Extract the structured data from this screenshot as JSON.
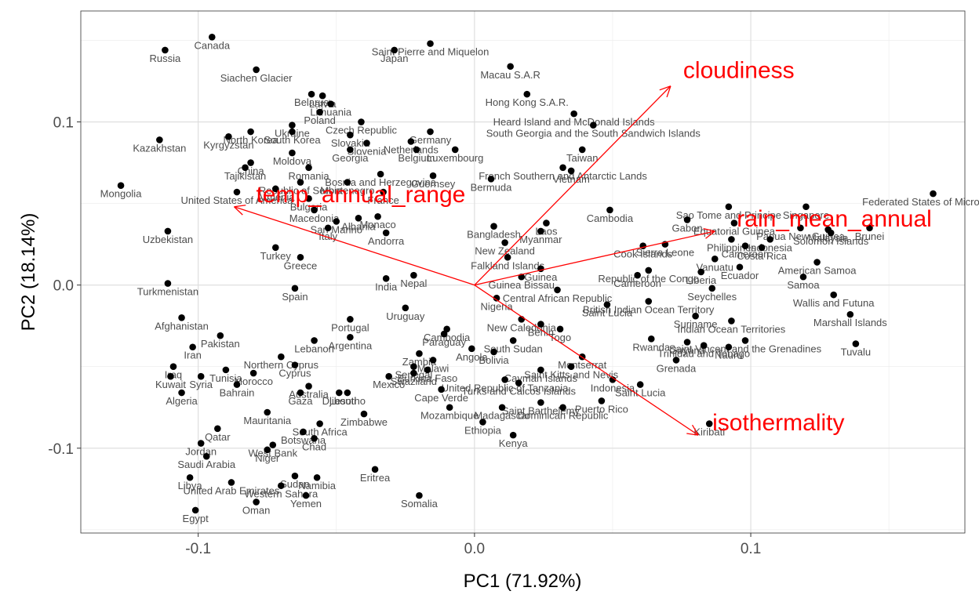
{
  "chart_data": {
    "type": "scatter",
    "title": "",
    "xlabel": "PC1 (71.92%)",
    "ylabel": "PC2 (18.14%)",
    "xlim": [
      -0.1425,
      0.1775
    ],
    "ylim": [
      -0.152,
      0.168
    ],
    "x_ticks": [
      -0.1,
      0.0,
      0.1
    ],
    "x_tick_labels": [
      "-0.1",
      "0.0",
      "0.1"
    ],
    "y_ticks": [
      -0.1,
      0.0,
      0.1
    ],
    "y_tick_labels": [
      "-0.1",
      "0.0",
      "0.1"
    ],
    "grid": true,
    "colors": {
      "points": "#000000",
      "labels": "#4d4d4d",
      "loadings": "#ff0000",
      "grid": "#ebebeb",
      "axis_text": "#4d4d4d",
      "axis_title": "#000000"
    },
    "arrow_origin": [
      0,
      0
    ],
    "loadings": [
      {
        "name": "cloudiness",
        "x": 0.071,
        "y": 0.122
      },
      {
        "name": "temp_annual_range",
        "x": -0.087,
        "y": 0.048
      },
      {
        "name": "rain_mean_annual",
        "x": 0.087,
        "y": 0.033
      },
      {
        "name": "isothermality",
        "x": 0.081,
        "y": -0.092
      }
    ],
    "points": [
      {
        "label": "Canada",
        "x": -0.095,
        "y": 0.152
      },
      {
        "label": "Russia",
        "x": -0.112,
        "y": 0.144
      },
      {
        "label": "Saint Pierre and Miquelon",
        "x": -0.016,
        "y": 0.148
      },
      {
        "label": "Japan",
        "x": -0.029,
        "y": 0.144
      },
      {
        "label": "Siachen Glacier",
        "x": -0.079,
        "y": 0.132
      },
      {
        "label": "Macau S.A.R",
        "x": 0.013,
        "y": 0.134
      },
      {
        "label": "Hong Kong S.A.R.",
        "x": 0.019,
        "y": 0.117
      },
      {
        "label": "Heard Island and McDonald Islands",
        "x": 0.036,
        "y": 0.105
      },
      {
        "label": "South Georgia and the South Sandwich Islands",
        "x": 0.043,
        "y": 0.098
      },
      {
        "label": "Belarus",
        "x": -0.059,
        "y": 0.117
      },
      {
        "label": "Latvia",
        "x": -0.055,
        "y": 0.116
      },
      {
        "label": "Lithuania",
        "x": -0.052,
        "y": 0.111
      },
      {
        "label": "Poland",
        "x": -0.056,
        "y": 0.106
      },
      {
        "label": "Czech Republic",
        "x": -0.041,
        "y": 0.1
      },
      {
        "label": "Slovakia",
        "x": -0.045,
        "y": 0.092
      },
      {
        "label": "Slovenia",
        "x": -0.039,
        "y": 0.087
      },
      {
        "label": "Ukraine",
        "x": -0.066,
        "y": 0.098
      },
      {
        "label": "North Korea",
        "x": -0.081,
        "y": 0.094
      },
      {
        "label": "South Korea",
        "x": -0.066,
        "y": 0.094
      },
      {
        "label": "Kazakhstan",
        "x": -0.114,
        "y": 0.089
      },
      {
        "label": "Kyrgyzstan",
        "x": -0.089,
        "y": 0.091
      },
      {
        "label": "Moldova",
        "x": -0.066,
        "y": 0.081
      },
      {
        "label": "Georgia",
        "x": -0.045,
        "y": 0.083
      },
      {
        "label": "Belgium",
        "x": -0.021,
        "y": 0.083
      },
      {
        "label": "Luxembourg",
        "x": -0.007,
        "y": 0.083
      },
      {
        "label": "Netherlands",
        "x": -0.023,
        "y": 0.088
      },
      {
        "label": "Germany",
        "x": -0.016,
        "y": 0.094
      },
      {
        "label": "Taiwan",
        "x": 0.039,
        "y": 0.083
      },
      {
        "label": "China",
        "x": -0.081,
        "y": 0.075
      },
      {
        "label": "Tajikistan",
        "x": -0.083,
        "y": 0.072
      },
      {
        "label": "Romania",
        "x": -0.06,
        "y": 0.072
      },
      {
        "label": "Bosnia and Herzegovina",
        "x": -0.034,
        "y": 0.068
      },
      {
        "label": "Montenegro",
        "x": -0.046,
        "y": 0.063
      },
      {
        "label": "Guernsey",
        "x": -0.015,
        "y": 0.067
      },
      {
        "label": "French Southern and Antarctic Lands",
        "x": 0.032,
        "y": 0.072
      },
      {
        "label": "Vietnam",
        "x": 0.035,
        "y": 0.07
      },
      {
        "label": "Bermuda",
        "x": 0.006,
        "y": 0.065
      },
      {
        "label": "Republic of Serbia",
        "x": -0.063,
        "y": 0.063
      },
      {
        "label": "Armenia",
        "x": -0.072,
        "y": 0.059
      },
      {
        "label": "Mongolia",
        "x": -0.128,
        "y": 0.061
      },
      {
        "label": "United States of America",
        "x": -0.086,
        "y": 0.057
      },
      {
        "label": "Bulgaria",
        "x": -0.06,
        "y": 0.053
      },
      {
        "label": "France",
        "x": -0.033,
        "y": 0.057
      },
      {
        "label": "Macedonia",
        "x": -0.058,
        "y": 0.046
      },
      {
        "label": "Monaco",
        "x": -0.035,
        "y": 0.042
      },
      {
        "label": "San Marino",
        "x": -0.05,
        "y": 0.039
      },
      {
        "label": "Albania",
        "x": -0.042,
        "y": 0.041
      },
      {
        "label": "Italy",
        "x": -0.053,
        "y": 0.035
      },
      {
        "label": "Andorra",
        "x": -0.032,
        "y": 0.032
      },
      {
        "label": "Uzbekistan",
        "x": -0.111,
        "y": 0.033
      },
      {
        "label": "Turkey",
        "x": -0.072,
        "y": 0.023
      },
      {
        "label": "Greece",
        "x": -0.063,
        "y": 0.017
      },
      {
        "label": "Turkmenistan",
        "x": -0.111,
        "y": 0.001
      },
      {
        "label": "Spain",
        "x": -0.065,
        "y": -0.002
      },
      {
        "label": "India",
        "x": -0.032,
        "y": 0.004
      },
      {
        "label": "Nepal",
        "x": -0.022,
        "y": 0.006
      },
      {
        "label": "Uruguay",
        "x": -0.025,
        "y": -0.014
      },
      {
        "label": "Portugal",
        "x": -0.045,
        "y": -0.021
      },
      {
        "label": "Afghanistan",
        "x": -0.106,
        "y": -0.02
      },
      {
        "label": "Pakistan",
        "x": -0.092,
        "y": -0.031
      },
      {
        "label": "Iran",
        "x": -0.102,
        "y": -0.038
      },
      {
        "label": "Lebanon",
        "x": -0.058,
        "y": -0.034
      },
      {
        "label": "Argentina",
        "x": -0.045,
        "y": -0.032
      },
      {
        "label": "Northern Cyprus",
        "x": -0.07,
        "y": -0.044
      },
      {
        "label": "Cyprus",
        "x": -0.065,
        "y": -0.049
      },
      {
        "label": "Iraq",
        "x": -0.109,
        "y": -0.05
      },
      {
        "label": "Tunisia",
        "x": -0.09,
        "y": -0.052
      },
      {
        "label": "Morocco",
        "x": -0.08,
        "y": -0.054
      },
      {
        "label": "Kuwait",
        "x": -0.11,
        "y": -0.056
      },
      {
        "label": "Syria",
        "x": -0.099,
        "y": -0.056
      },
      {
        "label": "Bahrain",
        "x": -0.086,
        "y": -0.061
      },
      {
        "label": "Algeria",
        "x": -0.106,
        "y": -0.066
      },
      {
        "label": "Australia",
        "x": -0.06,
        "y": -0.062
      },
      {
        "label": "Gaza",
        "x": -0.063,
        "y": -0.066
      },
      {
        "label": "Djibouti",
        "x": -0.049,
        "y": -0.066
      },
      {
        "label": "Lesotho",
        "x": -0.046,
        "y": -0.066
      },
      {
        "label": "Mexico",
        "x": -0.031,
        "y": -0.056
      },
      {
        "label": "Mauritania",
        "x": -0.075,
        "y": -0.078
      },
      {
        "label": "Zimbabwe",
        "x": -0.04,
        "y": -0.079
      },
      {
        "label": "South Africa",
        "x": -0.056,
        "y": -0.085
      },
      {
        "label": "Botswana",
        "x": -0.062,
        "y": -0.09
      },
      {
        "label": "Chad",
        "x": -0.058,
        "y": -0.094
      },
      {
        "label": "Qatar",
        "x": -0.093,
        "y": -0.088
      },
      {
        "label": "Jordan",
        "x": -0.099,
        "y": -0.097
      },
      {
        "label": "West Bank",
        "x": -0.073,
        "y": -0.098
      },
      {
        "label": "Niger",
        "x": -0.075,
        "y": -0.101
      },
      {
        "label": "Saudi Arabia",
        "x": -0.097,
        "y": -0.105
      },
      {
        "label": "Eritrea",
        "x": -0.036,
        "y": -0.113
      },
      {
        "label": "Sudan",
        "x": -0.065,
        "y": -0.117
      },
      {
        "label": "Namibia",
        "x": -0.057,
        "y": -0.118
      },
      {
        "label": "Libya",
        "x": -0.103,
        "y": -0.118
      },
      {
        "label": "United Arab Emirates",
        "x": -0.088,
        "y": -0.121
      },
      {
        "label": "Western Sahara",
        "x": -0.07,
        "y": -0.123
      },
      {
        "label": "Yemen",
        "x": -0.061,
        "y": -0.129
      },
      {
        "label": "Oman",
        "x": -0.079,
        "y": -0.133
      },
      {
        "label": "Somalia",
        "x": -0.02,
        "y": -0.129
      },
      {
        "label": "Egypt",
        "x": -0.101,
        "y": -0.138
      },
      {
        "label": "Bangladesh",
        "x": 0.007,
        "y": 0.036
      },
      {
        "label": "Laos",
        "x": 0.026,
        "y": 0.038
      },
      {
        "label": "Myanmar",
        "x": 0.024,
        "y": 0.033
      },
      {
        "label": "New Zealand",
        "x": 0.011,
        "y": 0.026
      },
      {
        "label": "Falkland Islands",
        "x": 0.012,
        "y": 0.017
      },
      {
        "label": "Cambodia",
        "x": 0.049,
        "y": 0.046
      },
      {
        "label": "Sao Tome and Principe",
        "x": 0.092,
        "y": 0.048
      },
      {
        "label": "Singapore",
        "x": 0.12,
        "y": 0.048
      },
      {
        "label": "Gabon",
        "x": 0.077,
        "y": 0.04
      },
      {
        "label": "Equatorial Guinea",
        "x": 0.094,
        "y": 0.038
      },
      {
        "label": "Papua New Guinea",
        "x": 0.118,
        "y": 0.035
      },
      {
        "label": "Malaysia",
        "x": 0.128,
        "y": 0.034
      },
      {
        "label": "Solomon Islands",
        "x": 0.129,
        "y": 0.032
      },
      {
        "label": "Brunei",
        "x": 0.143,
        "y": 0.035
      },
      {
        "label": "Federated States of Micronesia",
        "x": 0.166,
        "y": 0.056
      },
      {
        "label": "Indonesia",
        "x": 0.107,
        "y": 0.028
      },
      {
        "label": "Philippines",
        "x": 0.093,
        "y": 0.028
      },
      {
        "label": "Cameroon",
        "x": 0.098,
        "y": 0.024
      },
      {
        "label": "Costa Rica",
        "x": 0.104,
        "y": 0.023
      },
      {
        "label": "Sierra Leone",
        "x": 0.069,
        "y": 0.025
      },
      {
        "label": "Cook Islands",
        "x": 0.061,
        "y": 0.024
      },
      {
        "label": "Vanuatu",
        "x": 0.087,
        "y": 0.016
      },
      {
        "label": "American Samoa",
        "x": 0.124,
        "y": 0.014
      },
      {
        "label": "Ecuador",
        "x": 0.096,
        "y": 0.011
      },
      {
        "label": "Liberia",
        "x": 0.082,
        "y": 0.008
      },
      {
        "label": "Guinea",
        "x": 0.024,
        "y": 0.01
      },
      {
        "label": "Guinea Bissau",
        "x": 0.017,
        "y": 0.005
      },
      {
        "label": "Republic of the Congo",
        "x": 0.063,
        "y": 0.009
      },
      {
        "label": "Cameroon",
        "x": 0.059,
        "y": 0.006
      },
      {
        "label": "Samoa",
        "x": 0.119,
        "y": 0.005
      },
      {
        "label": "Wallis and Futuna",
        "x": 0.13,
        "y": -0.006
      },
      {
        "label": "Central African Republic",
        "x": 0.03,
        "y": -0.003
      },
      {
        "label": "Seychelles",
        "x": 0.086,
        "y": -0.002
      },
      {
        "label": "Nigeria",
        "x": 0.008,
        "y": -0.008
      },
      {
        "label": "British Indian Ocean Territory",
        "x": 0.063,
        "y": -0.01
      },
      {
        "label": "Saint Lucia",
        "x": 0.048,
        "y": -0.012
      },
      {
        "label": "Marshall Islands",
        "x": 0.136,
        "y": -0.018
      },
      {
        "label": "New Caledonia",
        "x": 0.017,
        "y": -0.021
      },
      {
        "label": "Benin",
        "x": 0.024,
        "y": -0.024
      },
      {
        "label": "Togo",
        "x": 0.031,
        "y": -0.027
      },
      {
        "label": "Suriname",
        "x": 0.08,
        "y": -0.019
      },
      {
        "label": "Indian Ocean Territories",
        "x": 0.093,
        "y": -0.022
      },
      {
        "label": "South Sudan",
        "x": 0.014,
        "y": -0.034
      },
      {
        "label": "Rwanda",
        "x": 0.064,
        "y": -0.033
      },
      {
        "label": "Guyana",
        "x": 0.077,
        "y": -0.035
      },
      {
        "label": "Saint Vincent and the Grenadines",
        "x": 0.098,
        "y": -0.034
      },
      {
        "label": "Trinidad and Tobago",
        "x": 0.083,
        "y": -0.037
      },
      {
        "label": "Nauru",
        "x": 0.092,
        "y": -0.038
      },
      {
        "label": "Tuvalu",
        "x": 0.138,
        "y": -0.036
      },
      {
        "label": "Bolivia",
        "x": 0.007,
        "y": -0.041
      },
      {
        "label": "Angola",
        "x": -0.001,
        "y": -0.039
      },
      {
        "label": "Paraguay",
        "x": -0.011,
        "y": -0.03
      },
      {
        "label": "Cambodia",
        "x": -0.01,
        "y": -0.027
      },
      {
        "label": "Montserrat",
        "x": 0.039,
        "y": -0.044
      },
      {
        "label": "Saint Kitts and Nevis",
        "x": 0.035,
        "y": -0.05
      },
      {
        "label": "Grenada",
        "x": 0.073,
        "y": -0.046
      },
      {
        "label": "Cayman Islands",
        "x": 0.024,
        "y": -0.052
      },
      {
        "label": "Turks and Caicos Islands",
        "x": 0.016,
        "y": -0.06
      },
      {
        "label": "Indonesia",
        "x": 0.05,
        "y": -0.058
      },
      {
        "label": "Saint Lucia",
        "x": 0.06,
        "y": -0.061
      },
      {
        "label": "Zambia",
        "x": -0.02,
        "y": -0.042
      },
      {
        "label": "Malawi",
        "x": -0.015,
        "y": -0.046
      },
      {
        "label": "Senegal",
        "x": -0.022,
        "y": -0.05
      },
      {
        "label": "Burkina Faso",
        "x": -0.017,
        "y": -0.052
      },
      {
        "label": "Swaziland",
        "x": -0.022,
        "y": -0.054
      },
      {
        "label": "United Republic of Tanzania",
        "x": 0.011,
        "y": -0.058
      },
      {
        "label": "Cape Verde",
        "x": -0.012,
        "y": -0.064
      },
      {
        "label": "Mozambique",
        "x": -0.009,
        "y": -0.075
      },
      {
        "label": "Madagascar",
        "x": 0.01,
        "y": -0.075
      },
      {
        "label": "Puerto Rico",
        "x": 0.046,
        "y": -0.071
      },
      {
        "label": "Dominican Republic",
        "x": 0.032,
        "y": -0.075
      },
      {
        "label": "Saint Barthelemy",
        "x": 0.024,
        "y": -0.072
      },
      {
        "label": "Ethiopia",
        "x": 0.003,
        "y": -0.084
      },
      {
        "label": "Kenya",
        "x": 0.014,
        "y": -0.092
      },
      {
        "label": "Kiribati",
        "x": 0.085,
        "y": -0.085
      }
    ]
  }
}
